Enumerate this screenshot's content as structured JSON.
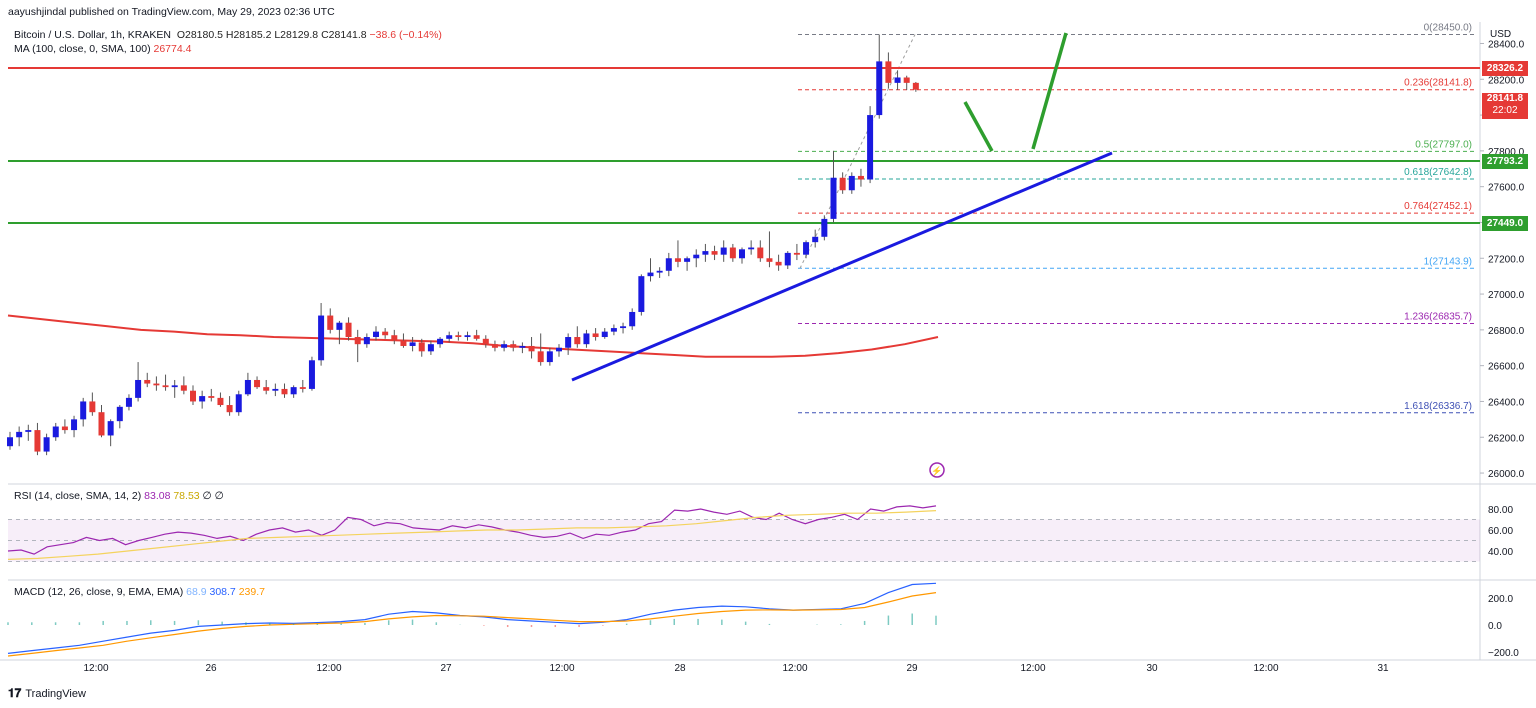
{
  "header": {
    "publisher": "aayushjindal published on TradingView.com, May 29, 2023 02:36 UTC",
    "symbol": "Bitcoin / U.S. Dollar, 1h, KRAKEN",
    "open": "O28180.5",
    "high": "H28185.2",
    "low": "L28129.8",
    "close": "C28141.8",
    "change": "−38.6 (−0.14%)",
    "ma_label": "MA (100, close, 0, SMA, 100)",
    "ma_value": "26774.4",
    "currency": "USD"
  },
  "colors": {
    "bull": "#1a1adf",
    "bear": "#e53935",
    "ma": "#e53935",
    "support": "#2e9e2e",
    "resistance": "#e53935",
    "trend": "#1a1adf",
    "rsi": "#9c27b0",
    "rsi_ma": "#f4d35e",
    "macd": "#2962ff",
    "signal": "#ff9800"
  },
  "price_tags": {
    "resistance": "28326.2",
    "last": "28141.8",
    "countdown": "22:02",
    "support_upper": "27793.2",
    "support_lower": "27449.0"
  },
  "fib": [
    {
      "label": "0(28450.0)",
      "price": 28450.0,
      "color": "#787b86"
    },
    {
      "label": "0.236(28141.8)",
      "price": 28141.8,
      "color": "#e53935"
    },
    {
      "label": "0.5(27797.0)",
      "price": 27797.0,
      "color": "#4caf50"
    },
    {
      "label": "0.618(27642.8)",
      "price": 27642.8,
      "color": "#26a69a"
    },
    {
      "label": "0.764(27452.1)",
      "price": 27452.1,
      "color": "#e53935"
    },
    {
      "label": "1(27143.9)",
      "price": 27143.9,
      "color": "#42a5f5"
    },
    {
      "label": "1.236(26835.7)",
      "price": 26835.7,
      "color": "#9c27b0"
    },
    {
      "label": "1.618(26336.7)",
      "price": 26336.7,
      "color": "#3f51b5"
    }
  ],
  "rsi": {
    "label": "RSI (14, close, SMA, 14, 2)",
    "value": "83.08",
    "ma_value": "78.53",
    "extra1": "∅",
    "extra2": "∅",
    "ticks": [
      "80.00",
      "60.00",
      "40.00"
    ]
  },
  "macd": {
    "label": "MACD (12, 26, close, 9, EMA, EMA)",
    "hist": "68.9",
    "macd": "308.7",
    "signal": "239.7",
    "ticks": [
      "200.0",
      "0.0",
      "−200.0"
    ]
  },
  "time_axis": [
    "12:00",
    "26",
    "12:00",
    "27",
    "12:00",
    "28",
    "12:00",
    "29",
    "12:00",
    "30",
    "12:00",
    "31"
  ],
  "price_ticks": [
    "28400.0",
    "28200.0",
    "28000.0",
    "27800.0",
    "27600.0",
    "27400.0",
    "27200.0",
    "27000.0",
    "26800.0",
    "26600.0",
    "26400.0",
    "26200.0",
    "26000.0"
  ],
  "footer": "TradingView",
  "chart_data": {
    "type": "candlestick",
    "title": "Bitcoin / U.S. Dollar, 1h, KRAKEN",
    "ylabel": "USD",
    "ylim": [
      25950,
      28520
    ],
    "candles": [
      [
        26150,
        26230,
        26130,
        26200
      ],
      [
        26200,
        26260,
        26150,
        26230
      ],
      [
        26230,
        26270,
        26180,
        26240
      ],
      [
        26240,
        26280,
        26100,
        26120
      ],
      [
        26120,
        26220,
        26100,
        26200
      ],
      [
        26200,
        26280,
        26180,
        26260
      ],
      [
        26260,
        26300,
        26220,
        26240
      ],
      [
        26240,
        26320,
        26200,
        26300
      ],
      [
        26300,
        26420,
        26260,
        26400
      ],
      [
        26400,
        26450,
        26320,
        26340
      ],
      [
        26340,
        26380,
        26200,
        26210
      ],
      [
        26210,
        26300,
        26150,
        26290
      ],
      [
        26290,
        26380,
        26250,
        26370
      ],
      [
        26370,
        26440,
        26350,
        26420
      ],
      [
        26420,
        26620,
        26400,
        26520
      ],
      [
        26520,
        26560,
        26480,
        26500
      ],
      [
        26500,
        26540,
        26460,
        26490
      ],
      [
        26490,
        26550,
        26460,
        26480
      ],
      [
        26480,
        26520,
        26420,
        26490
      ],
      [
        26490,
        26540,
        26440,
        26460
      ],
      [
        26460,
        26490,
        26380,
        26400
      ],
      [
        26400,
        26460,
        26360,
        26430
      ],
      [
        26430,
        26470,
        26400,
        26420
      ],
      [
        26420,
        26450,
        26370,
        26380
      ],
      [
        26380,
        26430,
        26320,
        26340
      ],
      [
        26340,
        26460,
        26320,
        26440
      ],
      [
        26440,
        26560,
        26430,
        26520
      ],
      [
        26520,
        26540,
        26470,
        26480
      ],
      [
        26480,
        26520,
        26440,
        26460
      ],
      [
        26460,
        26500,
        26430,
        26470
      ],
      [
        26470,
        26500,
        26420,
        26440
      ],
      [
        26440,
        26490,
        26420,
        26480
      ],
      [
        26480,
        26520,
        26450,
        26470
      ],
      [
        26470,
        26650,
        26460,
        26630
      ],
      [
        26630,
        26950,
        26600,
        26880
      ],
      [
        26880,
        26920,
        26780,
        26800
      ],
      [
        26800,
        26850,
        26720,
        26840
      ],
      [
        26840,
        26870,
        26740,
        26760
      ],
      [
        26760,
        26800,
        26620,
        26720
      ],
      [
        26720,
        26780,
        26700,
        26760
      ],
      [
        26760,
        26820,
        26740,
        26790
      ],
      [
        26790,
        26810,
        26750,
        26770
      ],
      [
        26770,
        26800,
        26720,
        26740
      ],
      [
        26740,
        26780,
        26700,
        26710
      ],
      [
        26710,
        26760,
        26680,
        26730
      ],
      [
        26730,
        26750,
        26650,
        26680
      ],
      [
        26680,
        26740,
        26660,
        26720
      ],
      [
        26720,
        26760,
        26700,
        26750
      ],
      [
        26750,
        26790,
        26730,
        26770
      ],
      [
        26770,
        26790,
        26740,
        26760
      ],
      [
        26760,
        26790,
        26740,
        26770
      ],
      [
        26770,
        26800,
        26740,
        26750
      ],
      [
        26750,
        26770,
        26700,
        26720
      ],
      [
        26720,
        26740,
        26680,
        26700
      ],
      [
        26700,
        26740,
        26680,
        26720
      ],
      [
        26720,
        26740,
        26680,
        26700
      ],
      [
        26700,
        26730,
        26670,
        26710
      ],
      [
        26710,
        26760,
        26640,
        26680
      ],
      [
        26680,
        26780,
        26600,
        26620
      ],
      [
        26620,
        26700,
        26600,
        26680
      ],
      [
        26680,
        26720,
        26650,
        26700
      ],
      [
        26700,
        26780,
        26660,
        26760
      ],
      [
        26760,
        26820,
        26700,
        26720
      ],
      [
        26720,
        26800,
        26700,
        26780
      ],
      [
        26780,
        26810,
        26740,
        26760
      ],
      [
        26760,
        26810,
        26750,
        26790
      ],
      [
        26790,
        26830,
        26770,
        26810
      ],
      [
        26810,
        26840,
        26780,
        26820
      ],
      [
        26820,
        26920,
        26800,
        26900
      ],
      [
        26900,
        27110,
        26880,
        27100
      ],
      [
        27100,
        27200,
        27070,
        27120
      ],
      [
        27120,
        27150,
        27090,
        27130
      ],
      [
        27130,
        27230,
        27100,
        27200
      ],
      [
        27200,
        27300,
        27150,
        27180
      ],
      [
        27180,
        27210,
        27130,
        27200
      ],
      [
        27200,
        27250,
        27150,
        27220
      ],
      [
        27220,
        27280,
        27180,
        27240
      ],
      [
        27240,
        27270,
        27190,
        27220
      ],
      [
        27220,
        27300,
        27180,
        27260
      ],
      [
        27260,
        27280,
        27180,
        27200
      ],
      [
        27200,
        27260,
        27170,
        27250
      ],
      [
        27250,
        27300,
        27220,
        27260
      ],
      [
        27260,
        27300,
        27180,
        27200
      ],
      [
        27200,
        27350,
        27150,
        27180
      ],
      [
        27180,
        27220,
        27130,
        27160
      ],
      [
        27160,
        27240,
        27140,
        27230
      ],
      [
        27230,
        27280,
        27190,
        27220
      ],
      [
        27220,
        27300,
        27200,
        27290
      ],
      [
        27290,
        27360,
        27260,
        27320
      ],
      [
        27320,
        27440,
        27300,
        27420
      ],
      [
        27420,
        27800,
        27400,
        27650
      ],
      [
        27650,
        27680,
        27560,
        27580
      ],
      [
        27580,
        27680,
        27560,
        27660
      ],
      [
        27660,
        27700,
        27600,
        27640
      ],
      [
        27640,
        28050,
        27620,
        28000
      ],
      [
        28000,
        28450,
        27980,
        28300
      ],
      [
        28300,
        28350,
        28150,
        28180
      ],
      [
        28180,
        28250,
        28140,
        28210
      ],
      [
        28210,
        28220,
        28140,
        28180
      ],
      [
        28180,
        28185,
        28130,
        28142
      ]
    ],
    "ma100": [
      26880,
      26860,
      26840,
      26820,
      26800,
      26790,
      26775,
      26770,
      26760,
      26755,
      26750,
      26745,
      26740,
      26735,
      26725,
      26710,
      26700,
      26690,
      26680,
      26670,
      26660,
      26650,
      26650,
      26650,
      26655,
      26670,
      26690,
      26720,
      26760
    ],
    "rsi": {
      "value": 83.08,
      "ma": 78.53,
      "overbought": 70,
      "oversold": 30
    },
    "macd": {
      "macd": 308.7,
      "signal": 239.7,
      "hist": 68.9
    }
  }
}
